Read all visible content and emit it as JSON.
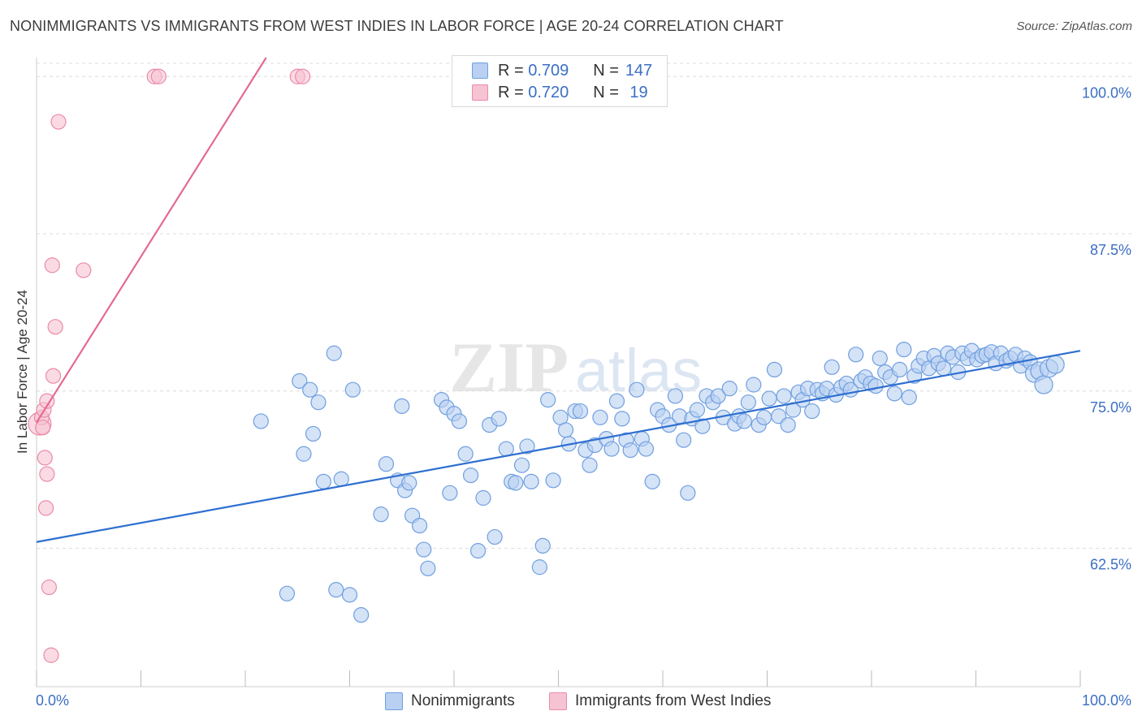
{
  "chart_data": {
    "type": "scatter",
    "title": "NONIMMIGRANTS VS IMMIGRANTS FROM WEST INDIES IN LABOR FORCE | AGE 20-24 CORRELATION CHART",
    "source": "Source: ZipAtlas.com",
    "ylabel": "In Labor Force | Age 20-24",
    "xlabel": "",
    "xlim": [
      0,
      100
    ],
    "ylim": [
      51.5,
      101.5
    ],
    "x_tick_labels": [
      "0.0%",
      "100.0%"
    ],
    "y_ticks": [
      {
        "value": 62.5,
        "label": "62.5%"
      },
      {
        "value": 75.0,
        "label": "75.0%"
      },
      {
        "value": 87.5,
        "label": "87.5%"
      },
      {
        "value": 100.0,
        "label": "100.0%"
      }
    ],
    "grid": true,
    "watermark": "ZIPatlas",
    "legend": {
      "position": "top-center",
      "entries": [
        {
          "series": "Nonimmigrants",
          "r_label": "R =",
          "r_value": "0.709",
          "n_label": "N =",
          "n_value": "147"
        },
        {
          "series": "Immigrants from West Indies",
          "r_label": "R =",
          "r_value": "0.720",
          "n_label": "N =",
          "n_value": "19"
        }
      ]
    },
    "series": [
      {
        "name": "Nonimmigrants",
        "color": "#6f9fe0",
        "fill": "#b9d0f2",
        "trendline": {
          "x": [
            0,
            100
          ],
          "y": [
            63.0,
            78.2
          ],
          "color": "#2e6fd0"
        },
        "points": [
          [
            21.5,
            72.6
          ],
          [
            24.0,
            58.9
          ],
          [
            25.2,
            75.8
          ],
          [
            25.6,
            70.0
          ],
          [
            26.2,
            75.1
          ],
          [
            26.5,
            71.6
          ],
          [
            27.0,
            74.1
          ],
          [
            27.5,
            67.8
          ],
          [
            28.7,
            59.2
          ],
          [
            28.5,
            78.0
          ],
          [
            29.2,
            68.0
          ],
          [
            30.0,
            58.8
          ],
          [
            30.3,
            75.1
          ],
          [
            31.1,
            57.2
          ],
          [
            33.0,
            65.2
          ],
          [
            33.5,
            69.2
          ],
          [
            34.6,
            67.9
          ],
          [
            35.0,
            73.8
          ],
          [
            35.3,
            67.1
          ],
          [
            35.7,
            67.7
          ],
          [
            36.0,
            65.1
          ],
          [
            36.7,
            64.3
          ],
          [
            37.1,
            62.4
          ],
          [
            37.5,
            60.9
          ],
          [
            38.8,
            74.3
          ],
          [
            39.3,
            73.7
          ],
          [
            39.6,
            66.9
          ],
          [
            40.0,
            73.2
          ],
          [
            40.5,
            72.6
          ],
          [
            41.1,
            70.0
          ],
          [
            41.6,
            68.3
          ],
          [
            42.3,
            62.3
          ],
          [
            42.8,
            66.5
          ],
          [
            43.4,
            72.3
          ],
          [
            43.9,
            63.4
          ],
          [
            44.3,
            72.8
          ],
          [
            45.0,
            70.4
          ],
          [
            45.5,
            67.8
          ],
          [
            45.9,
            67.7
          ],
          [
            46.5,
            69.1
          ],
          [
            47.0,
            70.6
          ],
          [
            47.4,
            67.8
          ],
          [
            48.2,
            61.0
          ],
          [
            48.5,
            62.7
          ],
          [
            49.0,
            74.3
          ],
          [
            49.5,
            67.9
          ],
          [
            50.2,
            72.9
          ],
          [
            50.7,
            71.9
          ],
          [
            51.0,
            70.8
          ],
          [
            51.6,
            73.4
          ],
          [
            52.1,
            73.4
          ],
          [
            52.6,
            70.3
          ],
          [
            53.0,
            69.1
          ],
          [
            53.5,
            70.7
          ],
          [
            54.0,
            72.9
          ],
          [
            54.6,
            71.2
          ],
          [
            55.1,
            70.4
          ],
          [
            55.6,
            74.2
          ],
          [
            56.1,
            72.8
          ],
          [
            56.5,
            71.1
          ],
          [
            56.9,
            70.3
          ],
          [
            57.5,
            75.1
          ],
          [
            58.0,
            71.2
          ],
          [
            58.4,
            70.4
          ],
          [
            59.0,
            67.8
          ],
          [
            59.5,
            73.5
          ],
          [
            60.0,
            73.0
          ],
          [
            60.6,
            72.3
          ],
          [
            61.2,
            74.6
          ],
          [
            61.6,
            73.0
          ],
          [
            62.0,
            71.1
          ],
          [
            62.4,
            66.9
          ],
          [
            62.8,
            72.8
          ],
          [
            63.3,
            73.5
          ],
          [
            63.8,
            72.2
          ],
          [
            64.2,
            74.6
          ],
          [
            64.8,
            74.1
          ],
          [
            65.3,
            74.6
          ],
          [
            65.8,
            72.9
          ],
          [
            66.4,
            75.2
          ],
          [
            66.9,
            72.4
          ],
          [
            67.3,
            73.0
          ],
          [
            67.8,
            72.6
          ],
          [
            68.2,
            74.1
          ],
          [
            68.7,
            75.5
          ],
          [
            69.2,
            72.3
          ],
          [
            69.7,
            72.9
          ],
          [
            70.2,
            74.4
          ],
          [
            70.7,
            76.7
          ],
          [
            71.1,
            73.0
          ],
          [
            71.6,
            74.6
          ],
          [
            72.0,
            72.3
          ],
          [
            72.5,
            73.5
          ],
          [
            73.0,
            74.9
          ],
          [
            73.4,
            74.3
          ],
          [
            73.9,
            75.2
          ],
          [
            74.3,
            73.4
          ],
          [
            74.8,
            75.1
          ],
          [
            75.3,
            74.8
          ],
          [
            75.7,
            75.2
          ],
          [
            76.2,
            76.9
          ],
          [
            76.6,
            74.7
          ],
          [
            77.1,
            75.3
          ],
          [
            77.6,
            75.6
          ],
          [
            78.0,
            75.1
          ],
          [
            78.5,
            77.9
          ],
          [
            79.0,
            75.8
          ],
          [
            79.4,
            76.1
          ],
          [
            79.9,
            75.6
          ],
          [
            80.4,
            75.4
          ],
          [
            80.8,
            77.6
          ],
          [
            81.3,
            76.5
          ],
          [
            81.8,
            76.1
          ],
          [
            82.2,
            74.8
          ],
          [
            82.7,
            76.7
          ],
          [
            83.1,
            78.3
          ],
          [
            83.6,
            74.5
          ],
          [
            84.1,
            76.2
          ],
          [
            84.5,
            77.0
          ],
          [
            85.0,
            77.6
          ],
          [
            85.5,
            76.8
          ],
          [
            86.0,
            77.8
          ],
          [
            86.4,
            77.2
          ],
          [
            86.9,
            76.8
          ],
          [
            87.3,
            78.0
          ],
          [
            87.8,
            77.7
          ],
          [
            88.3,
            76.5
          ],
          [
            88.7,
            78.0
          ],
          [
            89.2,
            77.6
          ],
          [
            89.6,
            78.2
          ],
          [
            90.1,
            77.5
          ],
          [
            90.6,
            77.8
          ],
          [
            91.0,
            77.9
          ],
          [
            91.5,
            78.1
          ],
          [
            91.9,
            77.2
          ],
          [
            92.4,
            78.0
          ],
          [
            92.9,
            77.4
          ],
          [
            93.3,
            77.6
          ],
          [
            93.8,
            77.9
          ],
          [
            94.3,
            77.0
          ],
          [
            94.7,
            77.6
          ],
          [
            95.2,
            77.3
          ],
          [
            95.6,
            76.4
          ],
          [
            96.1,
            76.6
          ],
          [
            96.5,
            75.5
          ],
          [
            97.0,
            76.8
          ],
          [
            97.6,
            77.1
          ]
        ]
      },
      {
        "name": "Immigrants from West Indies",
        "color": "#ea8aa8",
        "fill": "#f6c3d2",
        "trendline": {
          "x": [
            0,
            22.0
          ],
          "y": [
            72.5,
            101.5
          ],
          "color": "#e36a92"
        },
        "points": [
          [
            0.3,
            72.4
          ],
          [
            0.5,
            72.9
          ],
          [
            0.7,
            73.5
          ],
          [
            0.8,
            69.7
          ],
          [
            1.0,
            68.4
          ],
          [
            0.9,
            65.7
          ],
          [
            1.2,
            59.4
          ],
          [
            1.4,
            54.0
          ],
          [
            1.5,
            85.0
          ],
          [
            1.6,
            76.2
          ],
          [
            1.8,
            80.1
          ],
          [
            2.1,
            96.4
          ],
          [
            4.5,
            84.6
          ],
          [
            11.3,
            100.0
          ],
          [
            11.7,
            100.0
          ],
          [
            25.0,
            100.0
          ],
          [
            25.5,
            100.0
          ],
          [
            0.6,
            72.1
          ],
          [
            1.0,
            74.2
          ]
        ]
      }
    ]
  }
}
